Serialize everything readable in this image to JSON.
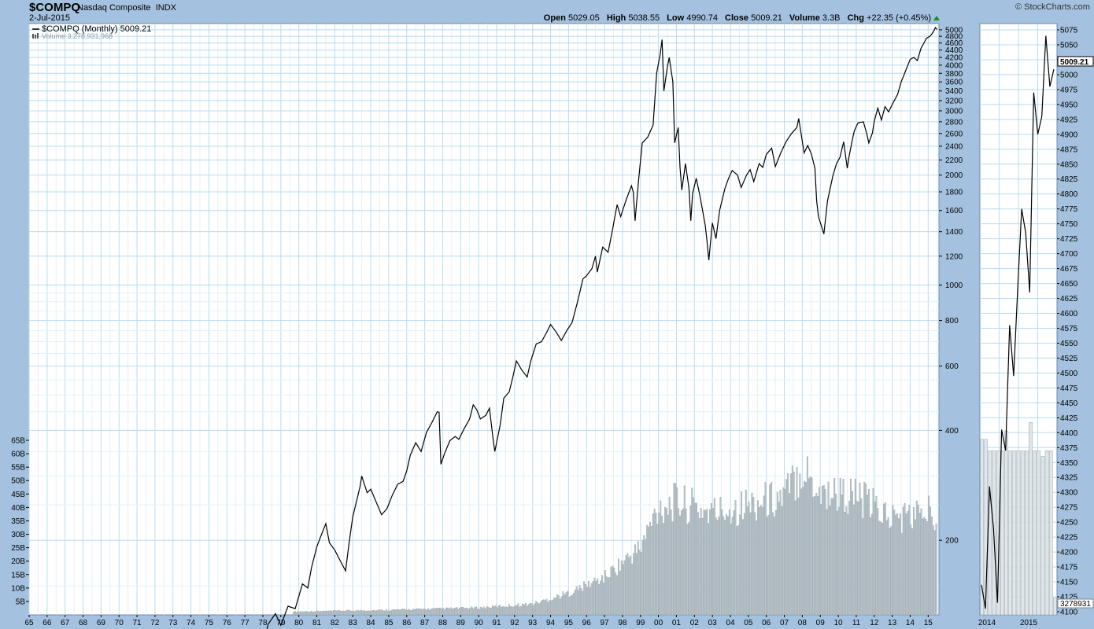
{
  "header": {
    "symbol": "$COMPQ",
    "name": "Nasdaq Composite",
    "exchange": "INDX",
    "date": "2-Jul-2015",
    "brand": "© StockCharts.com",
    "open_label": "Open",
    "open": "5029.05",
    "high_label": "High",
    "high": "5038.55",
    "low_label": "Low",
    "low": "4990.74",
    "close_label": "Close",
    "close": "5009.21",
    "volume_label": "Volume",
    "volume": "3.3B",
    "chg_label": "Chg",
    "chg": "+22.35 (+0.45%)"
  },
  "legend": {
    "price": "$COMPQ (Monthly) 5009.21",
    "volume": "Volume 3,278,931,968"
  },
  "colors": {
    "background": "#a4c2df",
    "plot": "#ffffff",
    "grid": "#b8dcf2",
    "price": "#000000",
    "volume": "#b9c4ca"
  },
  "chart_data": [
    {
      "type": "line",
      "title": "$COMPQ (Monthly)",
      "scale": "log",
      "ylim": [
        125,
        5200
      ],
      "xlim": [
        1965,
        2015.6
      ],
      "y_ticks": [
        200,
        400,
        600,
        800,
        1000,
        1200,
        1400,
        1600,
        1800,
        2000,
        2200,
        2400,
        2600,
        2800,
        3000,
        3200,
        3400,
        3600,
        3800,
        4000,
        4200,
        4400,
        4600,
        4800,
        5000
      ],
      "x_ticks": [
        "65",
        "66",
        "67",
        "68",
        "69",
        "70",
        "71",
        "72",
        "73",
        "74",
        "75",
        "76",
        "77",
        "78",
        "79",
        "80",
        "81",
        "82",
        "83",
        "84",
        "85",
        "86",
        "87",
        "88",
        "89",
        "90",
        "91",
        "92",
        "93",
        "94",
        "95",
        "96",
        "97",
        "98",
        "99",
        "00",
        "01",
        "02",
        "03",
        "04",
        "05",
        "06",
        "07",
        "08",
        "09",
        "10",
        "11",
        "12",
        "13",
        "14",
        "15"
      ],
      "series": [
        {
          "name": "$COMPQ",
          "points": [
            [
              1978.0,
              103
            ],
            [
              1978.3,
              118
            ],
            [
              1978.7,
              126
            ],
            [
              1979.0,
              117
            ],
            [
              1979.4,
              132
            ],
            [
              1979.8,
              130
            ],
            [
              1980.2,
              152
            ],
            [
              1980.5,
              148
            ],
            [
              1980.7,
              168
            ],
            [
              1981.0,
              192
            ],
            [
              1981.3,
              210
            ],
            [
              1981.5,
              222
            ],
            [
              1981.7,
              197
            ],
            [
              1982.0,
              188
            ],
            [
              1982.3,
              176
            ],
            [
              1982.6,
              165
            ],
            [
              1982.8,
              198
            ],
            [
              1983.0,
              232
            ],
            [
              1983.4,
              280
            ],
            [
              1983.5,
              300
            ],
            [
              1983.8,
              270
            ],
            [
              1984.0,
              276
            ],
            [
              1984.4,
              248
            ],
            [
              1984.6,
              235
            ],
            [
              1984.9,
              244
            ],
            [
              1985.2,
              266
            ],
            [
              1985.5,
              285
            ],
            [
              1985.8,
              290
            ],
            [
              1986.0,
              310
            ],
            [
              1986.2,
              342
            ],
            [
              1986.5,
              370
            ],
            [
              1986.8,
              350
            ],
            [
              1987.1,
              395
            ],
            [
              1987.4,
              420
            ],
            [
              1987.7,
              450
            ],
            [
              1987.8,
              448
            ],
            [
              1987.9,
              323
            ],
            [
              1988.1,
              345
            ],
            [
              1988.4,
              375
            ],
            [
              1988.7,
              385
            ],
            [
              1988.9,
              378
            ],
            [
              1989.2,
              405
            ],
            [
              1989.5,
              430
            ],
            [
              1989.7,
              470
            ],
            [
              1989.9,
              455
            ],
            [
              1990.1,
              430
            ],
            [
              1990.4,
              440
            ],
            [
              1990.6,
              460
            ],
            [
              1990.8,
              380
            ],
            [
              1990.9,
              350
            ],
            [
              1991.2,
              415
            ],
            [
              1991.4,
              490
            ],
            [
              1991.7,
              510
            ],
            [
              1991.9,
              560
            ],
            [
              1992.1,
              620
            ],
            [
              1992.4,
              585
            ],
            [
              1992.7,
              560
            ],
            [
              1992.9,
              620
            ],
            [
              1993.2,
              690
            ],
            [
              1993.5,
              700
            ],
            [
              1993.8,
              745
            ],
            [
              1994.0,
              780
            ],
            [
              1994.3,
              745
            ],
            [
              1994.6,
              705
            ],
            [
              1994.9,
              750
            ],
            [
              1995.2,
              790
            ],
            [
              1995.5,
              900
            ],
            [
              1995.8,
              1040
            ],
            [
              1996.0,
              1060
            ],
            [
              1996.3,
              1110
            ],
            [
              1996.5,
              1200
            ],
            [
              1996.6,
              1085
            ],
            [
              1996.9,
              1270
            ],
            [
              1997.2,
              1230
            ],
            [
              1997.4,
              1380
            ],
            [
              1997.7,
              1660
            ],
            [
              1997.9,
              1540
            ],
            [
              1998.2,
              1710
            ],
            [
              1998.5,
              1870
            ],
            [
              1998.6,
              1800
            ],
            [
              1998.7,
              1500
            ],
            [
              1998.9,
              1950
            ],
            [
              1999.1,
              2450
            ],
            [
              1999.4,
              2540
            ],
            [
              1999.7,
              2740
            ],
            [
              1999.9,
              3800
            ],
            [
              2000.1,
              4300
            ],
            [
              2000.2,
              4700
            ],
            [
              2000.3,
              3400
            ],
            [
              2000.5,
              3960
            ],
            [
              2000.6,
              4200
            ],
            [
              2000.8,
              3600
            ],
            [
              2000.9,
              2450
            ],
            [
              2001.1,
              2700
            ],
            [
              2001.2,
              2100
            ],
            [
              2001.3,
              1820
            ],
            [
              2001.5,
              2150
            ],
            [
              2001.7,
              1840
            ],
            [
              2001.8,
              1500
            ],
            [
              2001.9,
              1780
            ],
            [
              2002.1,
              1960
            ],
            [
              2002.3,
              1760
            ],
            [
              2002.6,
              1460
            ],
            [
              2002.7,
              1320
            ],
            [
              2002.8,
              1170
            ],
            [
              2003.0,
              1480
            ],
            [
              2003.2,
              1340
            ],
            [
              2003.4,
              1600
            ],
            [
              2003.7,
              1840
            ],
            [
              2003.9,
              1960
            ],
            [
              2004.1,
              2060
            ],
            [
              2004.4,
              2000
            ],
            [
              2004.6,
              1850
            ],
            [
              2004.9,
              2000
            ],
            [
              2005.1,
              2070
            ],
            [
              2005.3,
              1920
            ],
            [
              2005.6,
              2150
            ],
            [
              2005.8,
              2100
            ],
            [
              2006.0,
              2280
            ],
            [
              2006.3,
              2370
            ],
            [
              2006.5,
              2110
            ],
            [
              2006.8,
              2300
            ],
            [
              2007.1,
              2470
            ],
            [
              2007.4,
              2600
            ],
            [
              2007.7,
              2700
            ],
            [
              2007.8,
              2860
            ],
            [
              2007.9,
              2660
            ],
            [
              2008.1,
              2300
            ],
            [
              2008.3,
              2410
            ],
            [
              2008.5,
              2290
            ],
            [
              2008.7,
              2090
            ],
            [
              2008.8,
              1700
            ],
            [
              2008.9,
              1540
            ],
            [
              2009.2,
              1380
            ],
            [
              2009.4,
              1700
            ],
            [
              2009.7,
              1990
            ],
            [
              2009.9,
              2150
            ],
            [
              2010.1,
              2240
            ],
            [
              2010.3,
              2470
            ],
            [
              2010.5,
              2090
            ],
            [
              2010.6,
              2250
            ],
            [
              2010.8,
              2520
            ],
            [
              2010.9,
              2650
            ],
            [
              2011.1,
              2780
            ],
            [
              2011.4,
              2800
            ],
            [
              2011.6,
              2580
            ],
            [
              2011.7,
              2450
            ],
            [
              2011.9,
              2610
            ],
            [
              2012.0,
              2810
            ],
            [
              2012.2,
              3050
            ],
            [
              2012.4,
              2830
            ],
            [
              2012.6,
              3080
            ],
            [
              2012.8,
              2980
            ],
            [
              2013.0,
              3120
            ],
            [
              2013.3,
              3330
            ],
            [
              2013.5,
              3600
            ],
            [
              2013.8,
              3920
            ],
            [
              2014.0,
              4150
            ],
            [
              2014.2,
              4200
            ],
            [
              2014.4,
              4120
            ],
            [
              2014.6,
              4450
            ],
            [
              2014.8,
              4630
            ],
            [
              2014.9,
              4740
            ],
            [
              2015.1,
              4800
            ],
            [
              2015.3,
              4940
            ],
            [
              2015.4,
              5070
            ],
            [
              2015.5,
              5009
            ]
          ]
        }
      ]
    },
    {
      "type": "bar",
      "title": "Volume",
      "ylim": [
        0,
        65
      ],
      "y_ticks": [
        "5B",
        "10B",
        "15B",
        "20B",
        "25B",
        "30B",
        "35B",
        "40B",
        "45B",
        "50B",
        "55B",
        "60B",
        "65B"
      ],
      "y_tick_values": [
        5,
        10,
        15,
        20,
        25,
        30,
        35,
        40,
        45,
        50,
        55,
        60,
        65
      ],
      "volume_profile": [
        [
          1980,
          1.2
        ],
        [
          1985,
          1.8
        ],
        [
          1990,
          2.6
        ],
        [
          1993,
          4
        ],
        [
          1995,
          8
        ],
        [
          1997,
          14
        ],
        [
          1999,
          25
        ],
        [
          2000,
          40
        ],
        [
          2001,
          42
        ],
        [
          2003,
          38
        ],
        [
          2007,
          44
        ],
        [
          2008,
          55
        ],
        [
          2009,
          46
        ],
        [
          2011,
          44
        ],
        [
          2013,
          36
        ],
        [
          2015,
          38
        ]
      ]
    },
    {
      "type": "line",
      "title": "$COMPQ (Daily) inset",
      "ylim": [
        4100,
        5075
      ],
      "x_ticks": [
        "2014",
        "2015"
      ],
      "y_ticks": [
        4100,
        4125,
        4150,
        4175,
        4200,
        4225,
        4250,
        4275,
        4300,
        4325,
        4350,
        4375,
        4400,
        4425,
        4450,
        4475,
        4500,
        4525,
        4550,
        4575,
        4600,
        4625,
        4650,
        4675,
        4700,
        4725,
        4750,
        4775,
        4800,
        4825,
        4850,
        4875,
        4900,
        4925,
        4950,
        4975,
        5000,
        5025,
        5050,
        5075
      ],
      "last_label": "5009.21",
      "vol_label": "3278931",
      "values": [
        4145,
        4105,
        4310,
        4240,
        4115,
        4405,
        4370,
        4580,
        4495,
        4640,
        4775,
        4735,
        4635,
        4970,
        4900,
        4930,
        5065,
        4980,
        5009
      ],
      "volumes": [
        0.62,
        0.62,
        0.58,
        0.58,
        0.58,
        0.58,
        0.65,
        0.58,
        0.58,
        0.58,
        0.58,
        0.58,
        0.68,
        0.58,
        0.58,
        0.56,
        0.58,
        0.58,
        0.06
      ]
    }
  ]
}
